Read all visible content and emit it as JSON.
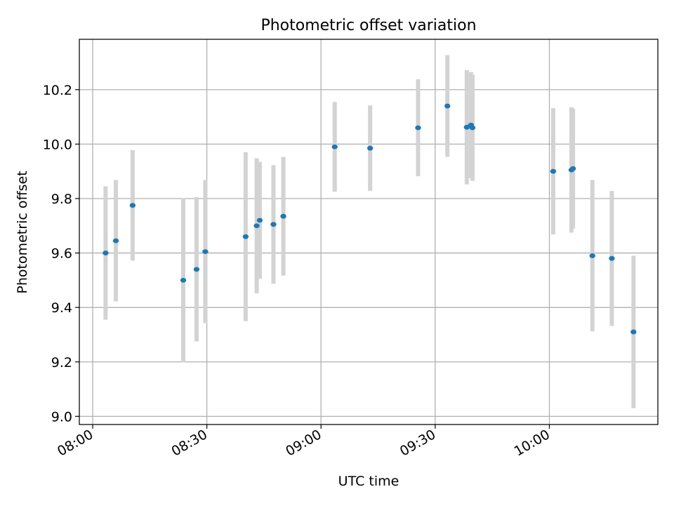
{
  "chart_data": {
    "type": "scatter",
    "title": "Photometric offset variation",
    "xlabel": "UTC time",
    "ylabel": "Photometric offset",
    "x_unit": "minutes after 08:00 UTC",
    "xlim": [
      -3.5,
      148.5
    ],
    "ylim": [
      8.97,
      10.385
    ],
    "xticks": [
      {
        "value": 0,
        "label": "08:00"
      },
      {
        "value": 30,
        "label": "08:30"
      },
      {
        "value": 60,
        "label": "09:00"
      },
      {
        "value": 90,
        "label": "09:30"
      },
      {
        "value": 120,
        "label": "10:00"
      }
    ],
    "yticks": [
      {
        "value": 9.0,
        "label": "9.0"
      },
      {
        "value": 9.2,
        "label": "9.2"
      },
      {
        "value": 9.4,
        "label": "9.4"
      },
      {
        "value": 9.6,
        "label": "9.6"
      },
      {
        "value": 9.8,
        "label": "9.8"
      },
      {
        "value": 10.0,
        "label": "10.0"
      },
      {
        "value": 10.2,
        "label": "10.2"
      }
    ],
    "grid": true,
    "colors": {
      "point": "#1f77b4",
      "errorbar": "#d3d3d3",
      "grid": "#b0b0b0",
      "axes": "#000000"
    },
    "series": [
      {
        "name": "offset",
        "points": [
          {
            "x": 3.4,
            "y": 9.6,
            "yerr": 0.245
          },
          {
            "x": 6.1,
            "y": 9.645,
            "yerr": 0.223
          },
          {
            "x": 10.5,
            "y": 9.775,
            "yerr": 0.203
          },
          {
            "x": 23.8,
            "y": 9.5,
            "yerr": 0.302
          },
          {
            "x": 27.3,
            "y": 9.54,
            "yerr": 0.265
          },
          {
            "x": 29.6,
            "y": 9.605,
            "yerr": 0.263
          },
          {
            "x": 40.2,
            "y": 9.66,
            "yerr": 0.31
          },
          {
            "x": 43.1,
            "y": 9.7,
            "yerr": 0.248
          },
          {
            "x": 43.9,
            "y": 9.72,
            "yerr": 0.215
          },
          {
            "x": 47.5,
            "y": 9.705,
            "yerr": 0.218
          },
          {
            "x": 50.1,
            "y": 9.735,
            "yerr": 0.218
          },
          {
            "x": 63.6,
            "y": 9.99,
            "yerr": 0.165
          },
          {
            "x": 72.9,
            "y": 9.985,
            "yerr": 0.157
          },
          {
            "x": 85.5,
            "y": 10.06,
            "yerr": 0.178
          },
          {
            "x": 93.2,
            "y": 10.14,
            "yerr": 0.187
          },
          {
            "x": 98.3,
            "y": 10.062,
            "yerr": 0.21
          },
          {
            "x": 99.4,
            "y": 10.07,
            "yerr": 0.195
          },
          {
            "x": 99.8,
            "y": 10.06,
            "yerr": 0.195
          },
          {
            "x": 121.0,
            "y": 9.9,
            "yerr": 0.232
          },
          {
            "x": 125.8,
            "y": 9.905,
            "yerr": 0.23
          },
          {
            "x": 126.2,
            "y": 9.91,
            "yerr": 0.22
          },
          {
            "x": 131.3,
            "y": 9.59,
            "yerr": 0.278
          },
          {
            "x": 136.4,
            "y": 9.58,
            "yerr": 0.248
          },
          {
            "x": 142.1,
            "y": 9.31,
            "yerr": 0.28
          }
        ]
      }
    ]
  }
}
